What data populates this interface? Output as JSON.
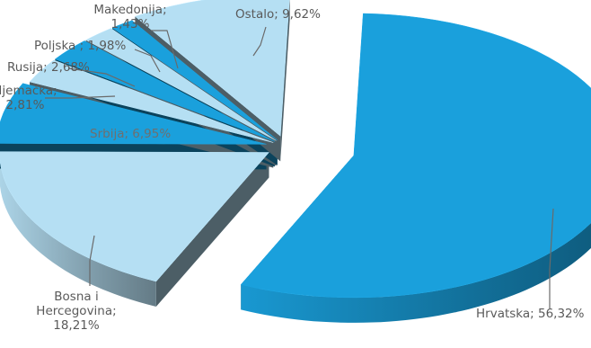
{
  "chart_data": {
    "type": "pie",
    "variant": "3d-exploded",
    "slices": [
      {
        "name": "Hrvatska",
        "value": 56.32,
        "label_lines": [
          "Hrvatska; 56,32%"
        ],
        "color": "#1aa0dc"
      },
      {
        "name": "Bosna i Hercegovina",
        "value": 18.21,
        "label_lines": [
          "Bosna i",
          "Hercegovina;",
          "18,21%"
        ],
        "color": "#b5dff3"
      },
      {
        "name": "Srbija",
        "value": 6.95,
        "label_lines": [
          "Srbija; 6,95%"
        ],
        "color": "#1aa0dc"
      },
      {
        "name": "Njemačka",
        "value": 2.81,
        "label_lines": [
          "Njemačka;",
          "2,81%"
        ],
        "color": "#b5dff3"
      },
      {
        "name": "Rusija",
        "value": 2.68,
        "label_lines": [
          "Rusija; 2,68%"
        ],
        "color": "#1aa0dc"
      },
      {
        "name": "Poljska",
        "value": 1.98,
        "label_lines": [
          "Poljska ; 1,98%"
        ],
        "color": "#b5dff3"
      },
      {
        "name": "Makedonija",
        "value": 1.43,
        "label_lines": [
          "Makedonija;",
          "1,43%"
        ],
        "color": "#1aa0dc"
      },
      {
        "name": "Ostalo",
        "value": 9.62,
        "label_lines": [
          "Ostalo; 9,62%"
        ],
        "color": "#b5dff3"
      }
    ],
    "legend": "none"
  }
}
